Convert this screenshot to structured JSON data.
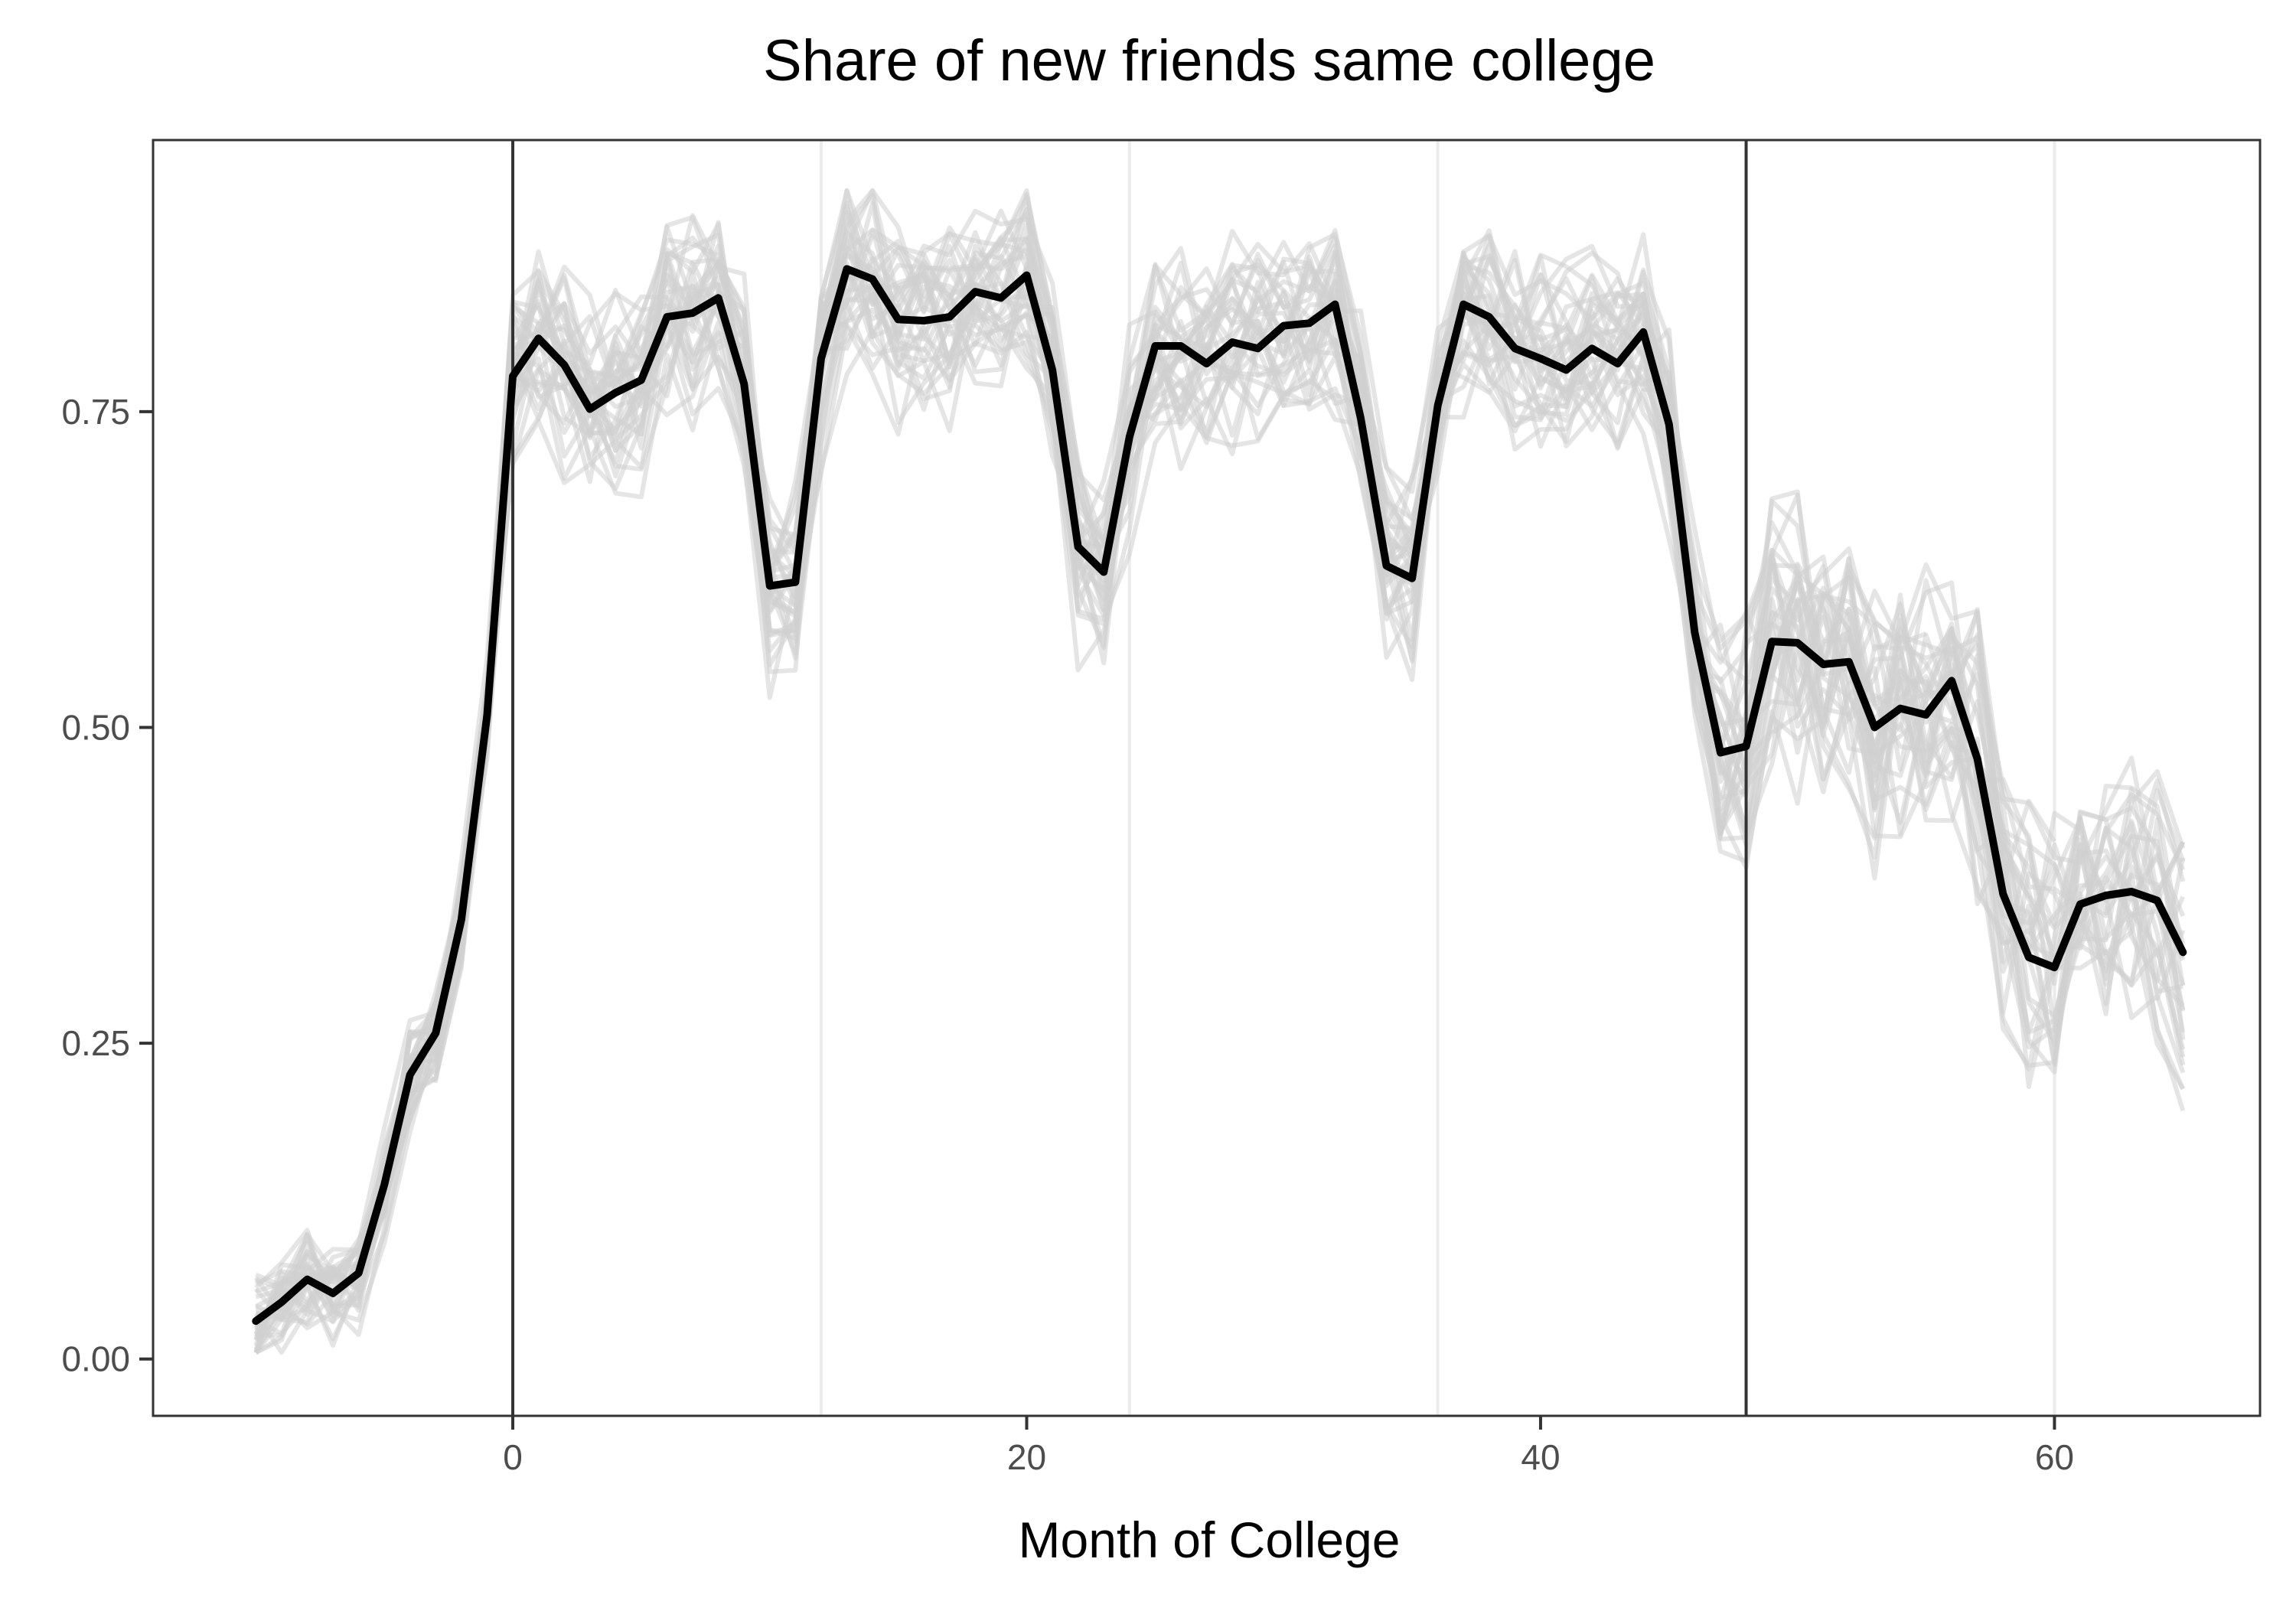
{
  "chart_data": {
    "type": "line",
    "title": "Share of new friends same college",
    "xlabel": "Month of College",
    "ylabel": "",
    "xlim": [
      -14,
      68
    ],
    "ylim": [
      -0.045,
      0.965
    ],
    "x_ticks": [
      0,
      20,
      40,
      60
    ],
    "x_tick_labels": [
      "0",
      "20",
      "40",
      "60"
    ],
    "y_ticks": [
      0,
      0.25,
      0.5,
      0.75
    ],
    "y_tick_labels": [
      "0.00",
      "0.25",
      "0.50",
      "0.75"
    ],
    "x_minor_gridlines": [
      12,
      24,
      36,
      60
    ],
    "reference_lines_x": [
      0,
      48
    ],
    "grid": true,
    "legend": "none",
    "colors": {
      "main_line": "#000000",
      "background_lines": "#d0d0d0",
      "reference_lines": "#333333",
      "minor_grid": "#ebebeb",
      "panel_border": "#333333",
      "tick_label": "#4d4d4d",
      "title": "#000000"
    },
    "x": [
      -10,
      -9,
      -8,
      -7,
      -6,
      -5,
      -4,
      -3,
      -2,
      -1,
      0,
      1,
      2,
      3,
      4,
      5,
      6,
      7,
      8,
      9,
      10,
      11,
      12,
      13,
      14,
      15,
      16,
      17,
      18,
      19,
      20,
      21,
      22,
      23,
      24,
      25,
      26,
      27,
      28,
      29,
      30,
      31,
      32,
      33,
      34,
      35,
      36,
      37,
      38,
      39,
      40,
      41,
      42,
      43,
      44,
      45,
      46,
      47,
      48,
      49,
      50,
      51,
      52,
      53,
      54,
      55,
      56,
      57,
      58,
      59,
      60,
      61,
      62,
      63,
      64,
      65
    ],
    "series": [
      {
        "role": "average",
        "values": [
          0.03,
          0.045,
          0.063,
          0.052,
          0.068,
          0.138,
          0.225,
          0.258,
          0.348,
          0.51,
          0.778,
          0.808,
          0.787,
          0.752,
          0.765,
          0.775,
          0.825,
          0.828,
          0.84,
          0.772,
          0.612,
          0.615,
          0.792,
          0.863,
          0.855,
          0.823,
          0.822,
          0.825,
          0.845,
          0.84,
          0.858,
          0.783,
          0.643,
          0.623,
          0.73,
          0.802,
          0.802,
          0.788,
          0.805,
          0.8,
          0.818,
          0.82,
          0.835,
          0.745,
          0.628,
          0.618,
          0.755,
          0.835,
          0.825,
          0.8,
          0.792,
          0.783,
          0.8,
          0.788,
          0.813,
          0.74,
          0.575,
          0.48,
          0.485,
          0.568,
          0.567,
          0.55,
          0.552,
          0.5,
          0.515,
          0.51,
          0.537,
          0.475,
          0.368,
          0.318,
          0.31,
          0.36,
          0.367,
          0.37,
          0.363,
          0.322
        ]
      }
    ],
    "background_series_count": 35
  }
}
